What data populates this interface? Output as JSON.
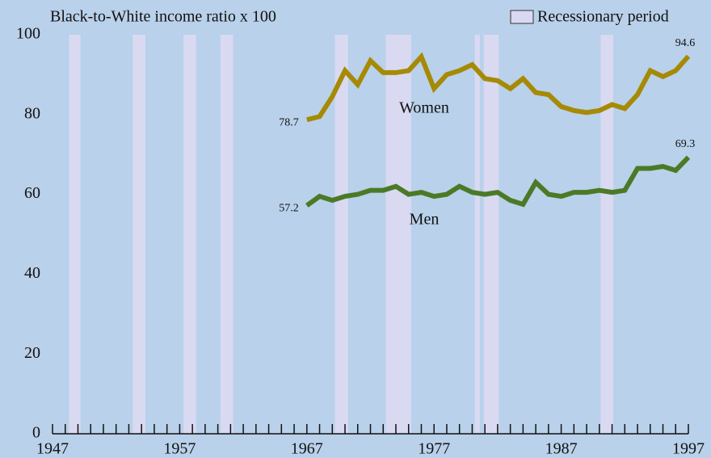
{
  "chart_data": {
    "type": "line",
    "ylabel": "Black-to-White income ratio x 100",
    "legend_label": "Recessionary period",
    "legend_position": "upper right",
    "band_color": "#d9d9f2",
    "recessions": [
      [
        1948.3,
        1949.2
      ],
      [
        1953.3,
        1954.3
      ],
      [
        1957.3,
        1958.3
      ],
      [
        1960.2,
        1961.2
      ],
      [
        1969.2,
        1970.25
      ],
      [
        1973.2,
        1975.2
      ],
      [
        1980.2,
        1980.6
      ],
      [
        1980.9,
        1982.1
      ],
      [
        1990.1,
        1991.1
      ]
    ],
    "x": [
      1967,
      1968,
      1969,
      1970,
      1971,
      1972,
      1973,
      1974,
      1975,
      1976,
      1977,
      1978,
      1979,
      1980,
      1981,
      1982,
      1983,
      1984,
      1985,
      1986,
      1987,
      1988,
      1989,
      1990,
      1991,
      1992,
      1993,
      1994,
      1995,
      1996,
      1997
    ],
    "series": [
      {
        "name": "Women",
        "color": "#a68a05",
        "values": [
          78.7,
          79.5,
          84.5,
          91,
          87.5,
          93.5,
          90.5,
          90.5,
          91,
          94.5,
          86.5,
          90,
          91,
          92.5,
          89,
          88.5,
          86.5,
          89,
          85.5,
          85,
          82,
          81,
          80.5,
          81,
          82.5,
          81.5,
          85,
          91,
          89.5,
          91,
          94.6
        ]
      },
      {
        "name": "Men",
        "color": "#4b7a27",
        "values": [
          57.2,
          59.5,
          58.5,
          59.5,
          60,
          61,
          61,
          62,
          60,
          60.5,
          59.5,
          60,
          62,
          60.5,
          60,
          60.5,
          58.5,
          57.5,
          63,
          60,
          59.5,
          60.5,
          60.5,
          61,
          60.5,
          61,
          66.5,
          66.5,
          67,
          66,
          69.3
        ]
      }
    ],
    "xlim": [
      1947,
      1997
    ],
    "xticks": [
      1947,
      1957,
      1967,
      1977,
      1987,
      1997
    ],
    "xminorticks": [
      1947,
      1948,
      1949,
      1950,
      1951,
      1952,
      1953,
      1954,
      1955,
      1956,
      1957,
      1958,
      1959,
      1960,
      1961,
      1962,
      1963,
      1964,
      1965,
      1966,
      1967,
      1968,
      1969,
      1970,
      1971,
      1972,
      1973,
      1974,
      1975,
      1976,
      1977,
      1978,
      1979,
      1980,
      1981,
      1982,
      1983,
      1984,
      1985,
      1986,
      1987,
      1988,
      1989,
      1990,
      1991,
      1992,
      1993,
      1994,
      1995,
      1996,
      1997
    ],
    "ylim": [
      0,
      100
    ],
    "yticks": [
      0,
      20,
      40,
      60,
      80,
      100
    ]
  }
}
